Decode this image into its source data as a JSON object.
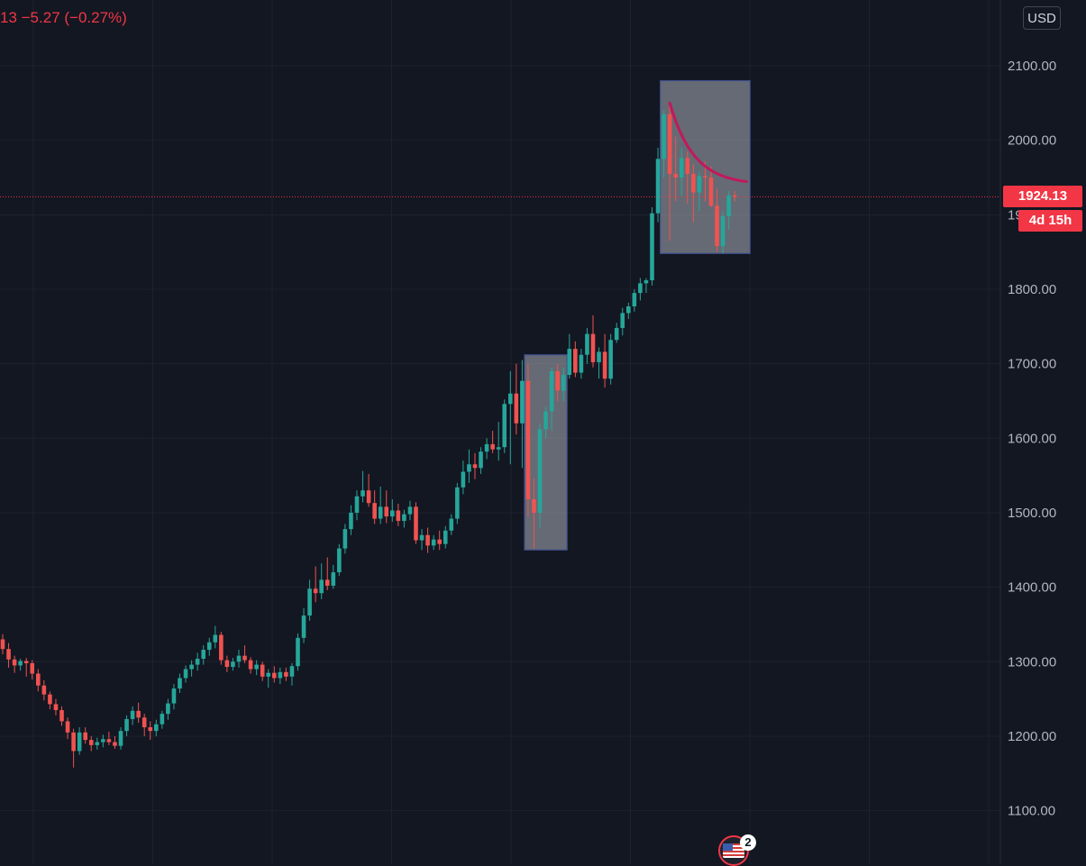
{
  "header": {
    "price_change_text": "13  −5.27 (−0.27%)"
  },
  "price_scale": {
    "currency": "USD",
    "current_price": "1924.13",
    "countdown": "4d 15h",
    "tick_labels": [
      "2100.00",
      "2000.00",
      "1900.00",
      "1800.00",
      "1700.00",
      "1600.00",
      "1500.00",
      "1400.00",
      "1300.00",
      "1200.00",
      "1100.00"
    ]
  },
  "events": {
    "country": "United States",
    "flag_icon": "us-flag-icon",
    "count": "2"
  },
  "colors": {
    "background": "#131722",
    "up": "#26a69a",
    "down": "#ef5350",
    "grid": "#1e222d",
    "price_line": "#f23645",
    "highlight_box": "#9a9ea6",
    "highlight_border": "#3b4c8c",
    "curve": "#c2185b"
  },
  "chart_data": {
    "type": "candlestick",
    "x_unit": "bar index",
    "yticks": [
      1100,
      1200,
      1300,
      1400,
      1500,
      1600,
      1700,
      1800,
      1900,
      2000,
      2100
    ],
    "ylim": [
      1035,
      2180
    ],
    "current_price": 1924.13,
    "grid": true,
    "candles": [
      [
        1330,
        1337,
        1310,
        1317
      ],
      [
        1317,
        1325,
        1292,
        1303
      ],
      [
        1303,
        1308,
        1285,
        1295
      ],
      [
        1295,
        1304,
        1288,
        1301
      ],
      [
        1301,
        1305,
        1280,
        1298
      ],
      [
        1298,
        1302,
        1276,
        1284
      ],
      [
        1284,
        1290,
        1260,
        1268
      ],
      [
        1268,
        1275,
        1248,
        1256
      ],
      [
        1256,
        1260,
        1236,
        1243
      ],
      [
        1243,
        1250,
        1228,
        1235
      ],
      [
        1235,
        1240,
        1214,
        1220
      ],
      [
        1220,
        1225,
        1196,
        1205
      ],
      [
        1205,
        1210,
        1158,
        1180
      ],
      [
        1180,
        1212,
        1175,
        1205
      ],
      [
        1205,
        1212,
        1190,
        1195
      ],
      [
        1195,
        1200,
        1180,
        1188
      ],
      [
        1188,
        1198,
        1182,
        1192
      ],
      [
        1192,
        1202,
        1185,
        1196
      ],
      [
        1196,
        1206,
        1188,
        1192
      ],
      [
        1192,
        1200,
        1183,
        1187
      ],
      [
        1187,
        1212,
        1182,
        1207
      ],
      [
        1207,
        1228,
        1200,
        1223
      ],
      [
        1223,
        1240,
        1215,
        1234
      ],
      [
        1234,
        1245,
        1218,
        1225
      ],
      [
        1225,
        1230,
        1200,
        1212
      ],
      [
        1212,
        1220,
        1195,
        1207
      ],
      [
        1207,
        1222,
        1200,
        1216
      ],
      [
        1216,
        1234,
        1210,
        1230
      ],
      [
        1230,
        1250,
        1222,
        1244
      ],
      [
        1244,
        1270,
        1236,
        1264
      ],
      [
        1264,
        1284,
        1258,
        1278
      ],
      [
        1278,
        1295,
        1272,
        1290
      ],
      [
        1290,
        1302,
        1280,
        1296
      ],
      [
        1296,
        1312,
        1288,
        1304
      ],
      [
        1304,
        1322,
        1296,
        1316
      ],
      [
        1316,
        1332,
        1308,
        1326
      ],
      [
        1326,
        1348,
        1318,
        1336
      ],
      [
        1336,
        1340,
        1296,
        1302
      ],
      [
        1302,
        1308,
        1286,
        1293
      ],
      [
        1293,
        1305,
        1288,
        1300
      ],
      [
        1300,
        1316,
        1292,
        1308
      ],
      [
        1308,
        1322,
        1298,
        1302
      ],
      [
        1302,
        1306,
        1284,
        1290
      ],
      [
        1290,
        1302,
        1282,
        1296
      ],
      [
        1296,
        1300,
        1274,
        1280
      ],
      [
        1280,
        1290,
        1265,
        1285
      ],
      [
        1285,
        1294,
        1272,
        1278
      ],
      [
        1278,
        1292,
        1270,
        1286
      ],
      [
        1286,
        1292,
        1274,
        1280
      ],
      [
        1280,
        1298,
        1268,
        1294
      ],
      [
        1294,
        1338,
        1288,
        1332
      ],
      [
        1332,
        1372,
        1325,
        1362
      ],
      [
        1362,
        1410,
        1355,
        1398
      ],
      [
        1398,
        1428,
        1380,
        1392
      ],
      [
        1392,
        1432,
        1384,
        1410
      ],
      [
        1410,
        1440,
        1396,
        1402
      ],
      [
        1402,
        1430,
        1398,
        1420
      ],
      [
        1420,
        1458,
        1415,
        1452
      ],
      [
        1452,
        1485,
        1445,
        1478
      ],
      [
        1478,
        1510,
        1470,
        1500
      ],
      [
        1500,
        1530,
        1490,
        1522
      ],
      [
        1522,
        1556,
        1514,
        1530
      ],
      [
        1530,
        1552,
        1508,
        1513
      ],
      [
        1513,
        1530,
        1485,
        1492
      ],
      [
        1492,
        1535,
        1485,
        1508
      ],
      [
        1508,
        1530,
        1486,
        1495
      ],
      [
        1495,
        1518,
        1488,
        1503
      ],
      [
        1503,
        1512,
        1482,
        1489
      ],
      [
        1489,
        1504,
        1480,
        1498
      ],
      [
        1498,
        1516,
        1490,
        1508
      ],
      [
        1508,
        1514,
        1458,
        1463
      ],
      [
        1463,
        1478,
        1450,
        1470
      ],
      [
        1470,
        1480,
        1446,
        1456
      ],
      [
        1456,
        1470,
        1450,
        1464
      ],
      [
        1464,
        1476,
        1450,
        1458
      ],
      [
        1458,
        1482,
        1452,
        1476
      ],
      [
        1476,
        1498,
        1470,
        1492
      ],
      [
        1492,
        1540,
        1485,
        1534
      ],
      [
        1534,
        1570,
        1525,
        1555
      ],
      [
        1555,
        1585,
        1540,
        1565
      ],
      [
        1565,
        1580,
        1545,
        1560
      ],
      [
        1560,
        1588,
        1552,
        1582
      ],
      [
        1582,
        1600,
        1572,
        1592
      ],
      [
        1592,
        1610,
        1580,
        1585
      ],
      [
        1585,
        1622,
        1570,
        1588
      ],
      [
        1588,
        1652,
        1580,
        1646
      ],
      [
        1646,
        1690,
        1565,
        1660
      ],
      [
        1660,
        1700,
        1605,
        1620
      ],
      [
        1620,
        1705,
        1560,
        1677
      ],
      [
        1677,
        1700,
        1495,
        1518
      ],
      [
        1518,
        1546,
        1452,
        1500
      ],
      [
        1500,
        1620,
        1480,
        1612
      ],
      [
        1612,
        1642,
        1600,
        1636
      ],
      [
        1636,
        1695,
        1610,
        1690
      ],
      [
        1690,
        1700,
        1650,
        1664
      ],
      [
        1664,
        1695,
        1650,
        1685
      ],
      [
        1685,
        1740,
        1680,
        1720
      ],
      [
        1720,
        1730,
        1682,
        1688
      ],
      [
        1688,
        1720,
        1680,
        1712
      ],
      [
        1712,
        1748,
        1700,
        1740
      ],
      [
        1740,
        1765,
        1695,
        1702
      ],
      [
        1702,
        1722,
        1680,
        1716
      ],
      [
        1716,
        1740,
        1668,
        1680
      ],
      [
        1680,
        1740,
        1672,
        1732
      ],
      [
        1732,
        1755,
        1728,
        1748
      ],
      [
        1748,
        1775,
        1738,
        1768
      ],
      [
        1768,
        1782,
        1760,
        1777
      ],
      [
        1777,
        1800,
        1770,
        1795
      ],
      [
        1795,
        1815,
        1785,
        1808
      ],
      [
        1808,
        1815,
        1795,
        1812
      ],
      [
        1812,
        1910,
        1805,
        1902
      ],
      [
        1902,
        1990,
        1890,
        1975
      ],
      [
        1975,
        2040,
        1950,
        2035
      ],
      [
        2035,
        2048,
        1865,
        1955
      ],
      [
        1955,
        2005,
        1918,
        1950
      ],
      [
        1950,
        1990,
        1925,
        1976
      ],
      [
        1976,
        1985,
        1915,
        1955
      ],
      [
        1955,
        1968,
        1890,
        1930
      ],
      [
        1930,
        1958,
        1905,
        1952
      ],
      [
        1952,
        1972,
        1918,
        1950
      ],
      [
        1950,
        1965,
        1910,
        1912
      ],
      [
        1912,
        1935,
        1850,
        1858
      ],
      [
        1858,
        1905,
        1848,
        1898
      ],
      [
        1898,
        1932,
        1880,
        1926
      ],
      [
        1926,
        1932,
        1918,
        1924.13
      ]
    ],
    "highlights": [
      {
        "from_bar": 89,
        "to_bar": 95,
        "price_high": 1712,
        "price_low": 1450
      },
      {
        "from_bar": 112,
        "to_bar": 126,
        "price_high": 2080,
        "price_low": 1848
      }
    ],
    "curve": {
      "from_bar": 113,
      "to_bar": 126,
      "start_price": 2050,
      "end_price": 1940
    }
  }
}
